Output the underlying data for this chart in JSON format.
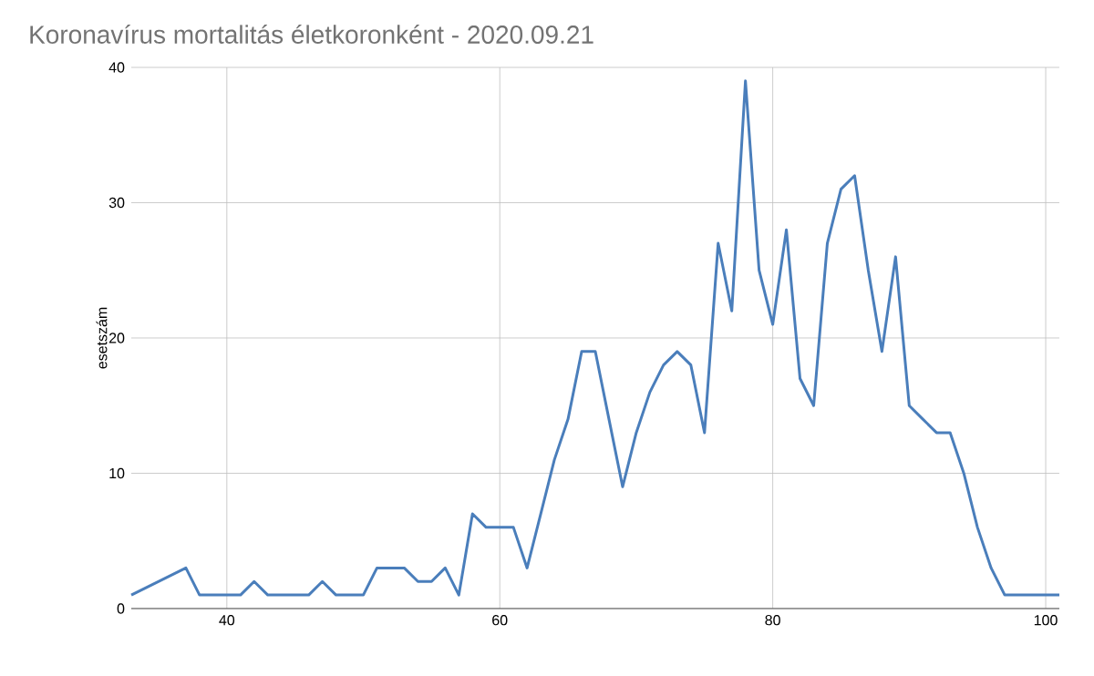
{
  "chart_data": {
    "type": "line",
    "title": "Koronavírus mortalitás életkoronként - 2020.09.21",
    "ylabel": "esetszám",
    "x": [
      33,
      37,
      38,
      39,
      40,
      41,
      42,
      43,
      44,
      45,
      46,
      47,
      48,
      49,
      50,
      51,
      52,
      53,
      54,
      55,
      56,
      57,
      58,
      59,
      60,
      61,
      62,
      63,
      64,
      65,
      66,
      67,
      68,
      69,
      70,
      71,
      72,
      73,
      74,
      75,
      76,
      77,
      78,
      79,
      80,
      81,
      82,
      83,
      84,
      85,
      86,
      87,
      88,
      89,
      90,
      91,
      92,
      93,
      94,
      95,
      96,
      97,
      98,
      99,
      100,
      101
    ],
    "series": [
      {
        "color": "#4a7ebb",
        "values": [
          1,
          3,
          1,
          1,
          1,
          1,
          2,
          1,
          1,
          1,
          1,
          2,
          1,
          1,
          1,
          3,
          3,
          3,
          2,
          2,
          3,
          1,
          7,
          6,
          6,
          6,
          3,
          7,
          11,
          14,
          19,
          19,
          14,
          9,
          13,
          16,
          18,
          19,
          18,
          13,
          27,
          22,
          39,
          25,
          21,
          28,
          17,
          15,
          27,
          31,
          32,
          25,
          19,
          26,
          15,
          14,
          13,
          13,
          10,
          6,
          3,
          1,
          1,
          1,
          1,
          1
        ]
      }
    ],
    "xlim": [
      33,
      101
    ],
    "ylim": [
      0,
      40
    ],
    "xticks": [
      40,
      60,
      80,
      100
    ],
    "yticks": [
      0,
      10,
      20,
      30,
      40
    ],
    "grid": true,
    "marker": "none",
    "line_style": "solid"
  }
}
